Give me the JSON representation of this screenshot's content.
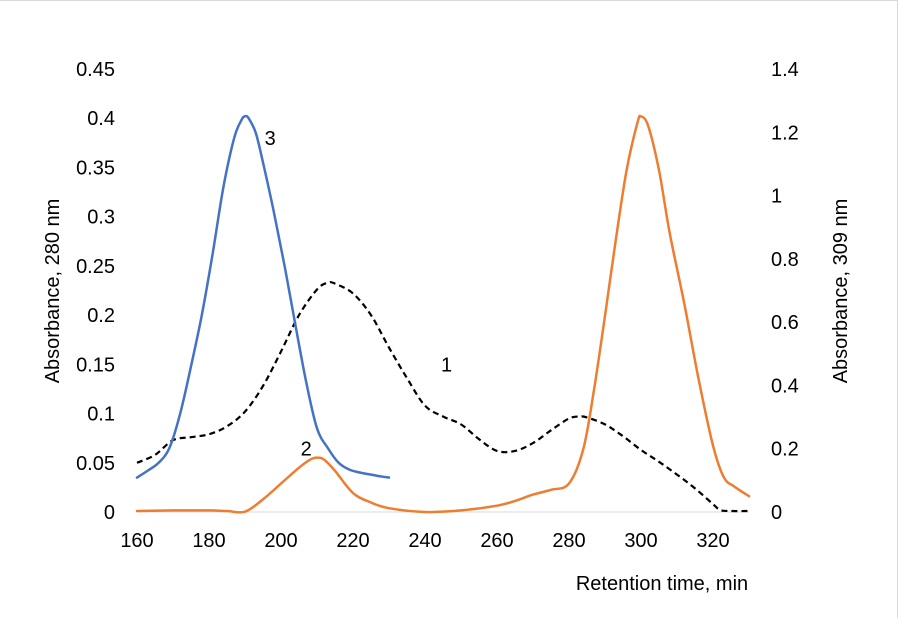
{
  "chart_data": {
    "type": "line",
    "title": "",
    "xlabel": "Retention time, min",
    "ylabel_left": "Absorbance, 280 nm",
    "ylabel_right": "Absorbance, 309 nm",
    "xlim": [
      160,
      330
    ],
    "ylim_left": [
      0,
      0.45
    ],
    "ylim_right": [
      0,
      1.4
    ],
    "x_ticks": [
      "160",
      "180",
      "200",
      "220",
      "240",
      "260",
      "280",
      "300",
      "320"
    ],
    "y_ticks_left": [
      "0",
      "0.05",
      "0.1",
      "0.15",
      "0.2",
      "0.25",
      "0.3",
      "0.35",
      "0.4",
      "0.45"
    ],
    "y_ticks_right": [
      "0",
      "0.2",
      "0.4",
      "0.6",
      "0.8",
      "1",
      "1.2",
      "1.4"
    ],
    "grid": false,
    "legend": "none",
    "series": [
      {
        "label": "1",
        "axis": "left",
        "color": "#000000",
        "dash": "dashed",
        "x": [
          160,
          165,
          170,
          175,
          180,
          185,
          190,
          195,
          200,
          205,
          210,
          213,
          215,
          220,
          225,
          230,
          235,
          240,
          245,
          250,
          255,
          260,
          265,
          270,
          275,
          280,
          283,
          285,
          290,
          295,
          300,
          305,
          310,
          315,
          320,
          322,
          325,
          330
        ],
        "y": [
          0.05,
          0.058,
          0.073,
          0.076,
          0.079,
          0.087,
          0.102,
          0.128,
          0.163,
          0.2,
          0.226,
          0.233,
          0.232,
          0.222,
          0.2,
          0.167,
          0.136,
          0.108,
          0.097,
          0.089,
          0.074,
          0.062,
          0.062,
          0.07,
          0.083,
          0.095,
          0.097,
          0.096,
          0.089,
          0.077,
          0.063,
          0.051,
          0.038,
          0.024,
          0.008,
          0.002,
          0.001,
          0.001
        ]
      },
      {
        "label": "2",
        "axis": "right",
        "color": "#ed7d31",
        "dash": "solid",
        "x": [
          160,
          170,
          180,
          185,
          190,
          195,
          200,
          205,
          208,
          210,
          212,
          215,
          220,
          225,
          230,
          240,
          250,
          260,
          265,
          270,
          275,
          280,
          284,
          287,
          290,
          293,
          296,
          299,
          300,
          302,
          305,
          308,
          312,
          316,
          320,
          323,
          326,
          330
        ],
        "y": [
          0.003,
          0.005,
          0.005,
          0.003,
          0.001,
          0.04,
          0.09,
          0.14,
          0.165,
          0.172,
          0.165,
          0.13,
          0.06,
          0.03,
          0.012,
          0.0,
          0.005,
          0.02,
          0.035,
          0.055,
          0.07,
          0.09,
          0.2,
          0.39,
          0.62,
          0.86,
          1.08,
          1.23,
          1.25,
          1.22,
          1.08,
          0.88,
          0.66,
          0.42,
          0.21,
          0.11,
          0.08,
          0.05
        ]
      },
      {
        "label": "3",
        "axis": "left",
        "color": "#4472c4",
        "dash": "solid",
        "x": [
          160,
          163,
          166,
          169,
          172,
          175,
          178,
          181,
          184,
          187,
          189,
          190,
          191,
          193,
          195,
          198,
          201,
          204,
          207,
          210,
          213,
          216,
          219,
          222,
          225,
          228,
          230
        ],
        "y": [
          0.035,
          0.042,
          0.05,
          0.065,
          0.1,
          0.148,
          0.2,
          0.262,
          0.33,
          0.38,
          0.398,
          0.402,
          0.4,
          0.385,
          0.355,
          0.305,
          0.25,
          0.19,
          0.132,
          0.085,
          0.065,
          0.05,
          0.043,
          0.04,
          0.038,
          0.036,
          0.035
        ]
      }
    ]
  }
}
